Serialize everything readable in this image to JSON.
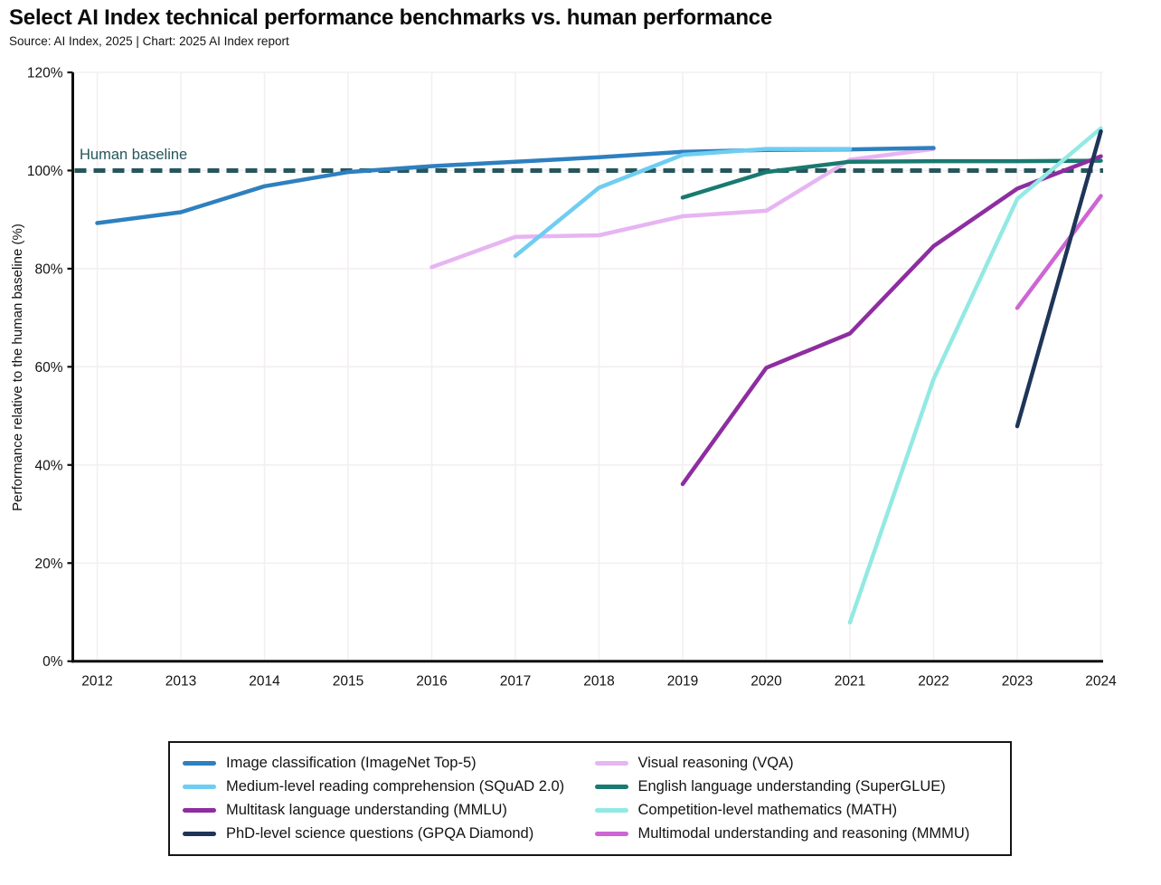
{
  "header": {
    "title": "Select AI Index technical performance benchmarks vs. human performance",
    "subtitle": "Source: AI Index, 2025 | Chart: 2025 AI Index report"
  },
  "chart_data": {
    "type": "line",
    "title": "Select AI Index technical performance benchmarks vs. human performance",
    "xlabel": "",
    "ylabel": "Performance relative to the human baseline (%)",
    "xlim": [
      2012,
      2024
    ],
    "ylim": [
      0,
      120
    ],
    "x_ticks": [
      "2012",
      "2013",
      "2014",
      "2015",
      "2016",
      "2017",
      "2018",
      "2019",
      "2020",
      "2021",
      "2022",
      "2023",
      "2024"
    ],
    "y_ticks": [
      "0%",
      "20%",
      "40%",
      "60%",
      "80%",
      "100%",
      "120%"
    ],
    "grid": true,
    "legend_position": "bottom",
    "human_baseline": {
      "label": "Human baseline",
      "value": 100,
      "color": "#26565c"
    },
    "series": [
      {
        "name": "Image classification (ImageNet Top-5)",
        "color": "#2e80bf",
        "points": [
          [
            2012,
            89.3
          ],
          [
            2013,
            91.5
          ],
          [
            2014,
            96.8
          ],
          [
            2015,
            99.7
          ],
          [
            2016,
            100.9
          ],
          [
            2017,
            101.8
          ],
          [
            2018,
            102.7
          ],
          [
            2019,
            103.8
          ],
          [
            2020,
            104.2
          ],
          [
            2021,
            104.3
          ],
          [
            2022,
            104.6
          ]
        ]
      },
      {
        "name": "Medium-level reading comprehension (SQuAD 2.0)",
        "color": "#6fcdf1",
        "points": [
          [
            2017,
            82.6
          ],
          [
            2018,
            96.5
          ],
          [
            2019,
            103.2
          ],
          [
            2020,
            104.4
          ],
          [
            2021,
            104.4
          ]
        ]
      },
      {
        "name": "Multitask language understanding (MMLU)",
        "color": "#8e2da0",
        "points": [
          [
            2019,
            36.1
          ],
          [
            2020,
            59.8
          ],
          [
            2021,
            66.8
          ],
          [
            2022,
            84.6
          ],
          [
            2023,
            96.3
          ],
          [
            2024,
            102.9
          ]
        ]
      },
      {
        "name": "PhD-level science questions (GPQA Diamond)",
        "color": "#1e3558",
        "points": [
          [
            2023,
            47.9
          ],
          [
            2024,
            108.0
          ]
        ]
      },
      {
        "name": "Visual reasoning (VQA)",
        "color": "#e7b5f2",
        "points": [
          [
            2016,
            80.3
          ],
          [
            2017,
            86.5
          ],
          [
            2018,
            86.8
          ],
          [
            2019,
            90.7
          ],
          [
            2020,
            91.8
          ],
          [
            2021,
            102.2
          ],
          [
            2022,
            104.4
          ]
        ]
      },
      {
        "name": "English language understanding (SuperGLUE)",
        "color": "#197a70",
        "points": [
          [
            2019,
            94.5
          ],
          [
            2020,
            99.7
          ],
          [
            2021,
            101.8
          ],
          [
            2022,
            101.9
          ],
          [
            2023,
            101.9
          ],
          [
            2024,
            102.0
          ]
        ]
      },
      {
        "name": "Competition-level mathematics (MATH)",
        "color": "#93e9e3",
        "points": [
          [
            2021,
            7.9
          ],
          [
            2022,
            57.5
          ],
          [
            2023,
            94.2
          ],
          [
            2024,
            108.6
          ]
        ]
      },
      {
        "name": "Multimodal understanding and reasoning (MMMU)",
        "color": "#cd66d4",
        "points": [
          [
            2023,
            72.0
          ],
          [
            2024,
            94.8
          ]
        ]
      }
    ],
    "draw_order": [
      4,
      0,
      1,
      5,
      2,
      6,
      7,
      3
    ]
  }
}
